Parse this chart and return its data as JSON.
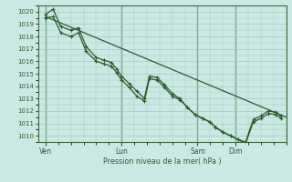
{
  "bg_color": "#cce8e4",
  "grid_color": "#99ccbb",
  "line_color": "#2d5a2d",
  "marker_color": "#2d5a2d",
  "xlabel": "Pression niveau de la mer( hPa )",
  "ylim": [
    1009.5,
    1020.5
  ],
  "yticks": [
    1010,
    1011,
    1012,
    1013,
    1014,
    1015,
    1016,
    1017,
    1018,
    1019,
    1020
  ],
  "xtick_labels": [
    "Ven",
    "Lun",
    "Sam",
    "Dim"
  ],
  "xtick_positions": [
    0,
    3,
    6,
    7.5
  ],
  "xlim": [
    -0.3,
    9.5
  ],
  "series_straight": {
    "x": [
      0,
      9.5
    ],
    "y": [
      1019.6,
      1011.5
    ]
  },
  "series_main": {
    "x": [
      0,
      0.3,
      0.6,
      1.0,
      1.3,
      1.6,
      2.0,
      2.3,
      2.6,
      2.8,
      3.0,
      3.3,
      3.6,
      3.9,
      4.1,
      4.4,
      4.7,
      5.0,
      5.3,
      5.6,
      5.9,
      6.2,
      6.5,
      6.7,
      7.0,
      7.3,
      7.6,
      7.9,
      8.2,
      8.5,
      8.8,
      9.1,
      9.3
    ],
    "y": [
      1019.8,
      1020.2,
      1018.8,
      1018.5,
      1018.7,
      1017.2,
      1016.3,
      1016.1,
      1015.9,
      1015.4,
      1014.8,
      1014.2,
      1013.6,
      1013.0,
      1014.8,
      1014.7,
      1014.1,
      1013.4,
      1013.0,
      1012.3,
      1011.7,
      1011.4,
      1011.1,
      1010.7,
      1010.3,
      1010.0,
      1009.7,
      1009.5,
      1011.3,
      1011.6,
      1012.0,
      1011.9,
      1011.6
    ]
  },
  "series_close": {
    "x": [
      0,
      0.3,
      0.6,
      1.0,
      1.3,
      1.6,
      2.0,
      2.3,
      2.6,
      2.8,
      3.0,
      3.3,
      3.6,
      3.9,
      4.1,
      4.4,
      4.7,
      5.0,
      5.3,
      5.6,
      5.9,
      6.2,
      6.5,
      6.7,
      7.0,
      7.3,
      7.6,
      7.9,
      8.2,
      8.5,
      8.8,
      9.1,
      9.3
    ],
    "y": [
      1019.5,
      1019.6,
      1018.3,
      1018.0,
      1018.3,
      1016.8,
      1016.0,
      1015.8,
      1015.6,
      1015.1,
      1014.5,
      1013.9,
      1013.2,
      1012.8,
      1014.6,
      1014.5,
      1013.9,
      1013.2,
      1012.9,
      1012.3,
      1011.7,
      1011.4,
      1011.1,
      1010.7,
      1010.3,
      1010.0,
      1009.7,
      1009.4,
      1011.1,
      1011.4,
      1011.8,
      1011.7,
      1011.4
    ]
  }
}
